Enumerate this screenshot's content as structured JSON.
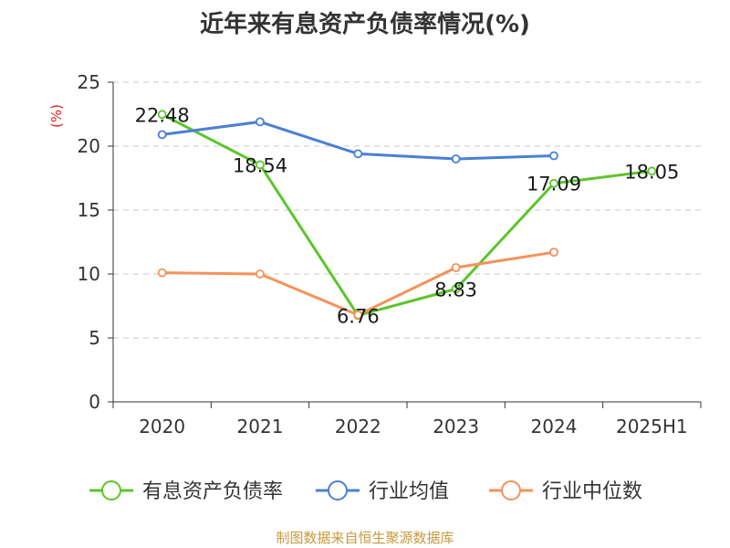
{
  "title": "近年来有息资产负债率情况(%)",
  "source": "制图数据来自恒生聚源数据库",
  "chart_data": {
    "type": "line",
    "title": "近年来有息资产负债率情况(%)",
    "ylabel": "(%)",
    "categories": [
      "2020",
      "2021",
      "2022",
      "2023",
      "2024",
      "2025H1"
    ],
    "ylim": [
      0,
      25
    ],
    "yticks": [
      0,
      5,
      10,
      15,
      20,
      25
    ],
    "grid": true,
    "legend_position": "bottom",
    "series": [
      {
        "name": "有息资产负债率",
        "color": "#5cc52b",
        "values": [
          22.48,
          18.54,
          6.76,
          8.83,
          17.09,
          18.05
        ],
        "labels": [
          "22.48",
          "18.54",
          "6.76",
          "8.83",
          "17.09",
          "18.05"
        ]
      },
      {
        "name": "行业均值",
        "color": "#4a7fd6",
        "values": [
          20.9,
          21.9,
          19.4,
          19.0,
          19.25,
          null
        ]
      },
      {
        "name": "行业中位数",
        "color": "#f5915a",
        "values": [
          10.1,
          10.0,
          6.8,
          10.5,
          11.7,
          null
        ]
      }
    ]
  }
}
